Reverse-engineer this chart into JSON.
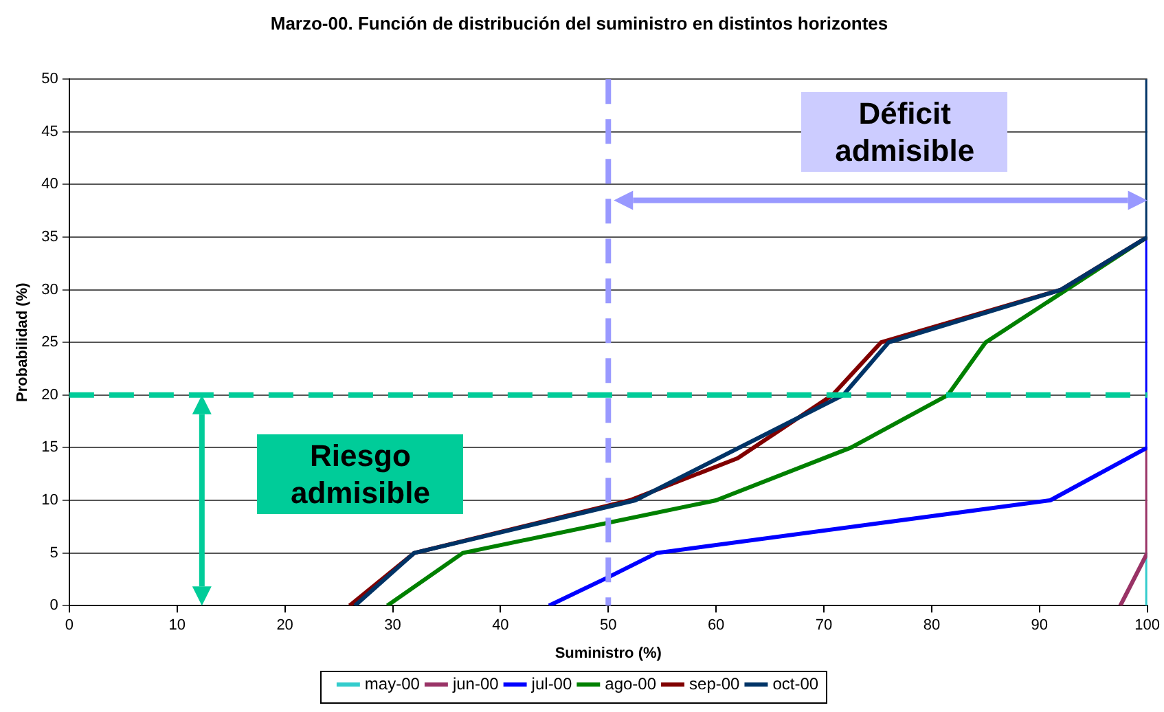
{
  "chart_data": {
    "type": "line",
    "title": "Marzo-00. Función de distribución del suministro en distintos horizontes",
    "xlabel": "Suministro (%)",
    "ylabel": "Probabilidad (%)",
    "xlim": [
      0,
      100
    ],
    "xticks": [
      0,
      10,
      20,
      30,
      40,
      50,
      60,
      70,
      80,
      90,
      100
    ],
    "ylim": [
      0,
      50
    ],
    "yticks": [
      0,
      5,
      10,
      15,
      20,
      25,
      30,
      35,
      40,
      45,
      50
    ],
    "series": [
      {
        "name": "may-00",
        "color": "#33cccc",
        "x": [
          100,
          100
        ],
        "values": [
          0,
          5
        ]
      },
      {
        "name": "jun-00",
        "color": "#993366",
        "x": [
          97.5,
          100,
          100
        ],
        "values": [
          0,
          5,
          15
        ]
      },
      {
        "name": "jul-00",
        "color": "#0000ff",
        "x": [
          44.5,
          50,
          54.5,
          91,
          100,
          100
        ],
        "values": [
          0,
          2.7,
          5,
          10,
          15,
          35
        ]
      },
      {
        "name": "ago-00",
        "color": "#008000",
        "x": [
          29.5,
          36.5,
          60,
          72.5,
          81.5,
          85,
          100
        ],
        "values": [
          0,
          5,
          10,
          15,
          20,
          25,
          35
        ]
      },
      {
        "name": "sep-00",
        "color": "#800000",
        "x": [
          26,
          32,
          52,
          62,
          70.8,
          75.3,
          92,
          100
        ],
        "values": [
          0,
          5,
          10,
          14,
          20,
          25,
          30,
          35
        ]
      },
      {
        "name": "oct-00",
        "color": "#003366",
        "x": [
          26.5,
          32,
          52.5,
          71.8,
          76,
          92,
          100,
          100
        ],
        "values": [
          0,
          5,
          10,
          20,
          25,
          30,
          35,
          50
        ]
      }
    ],
    "ref_lines": [
      {
        "axis": "x",
        "value": 50,
        "color": "#9999ff",
        "line_style": "dashed"
      },
      {
        "axis": "y",
        "value": 20,
        "color": "#00cc99",
        "line_style": "dashed"
      }
    ],
    "annotations": [
      "Déficit admisible",
      "Riesgo admisible"
    ],
    "grid": "y",
    "legend": "bottom",
    "marker": "none",
    "line_style": "solid"
  }
}
